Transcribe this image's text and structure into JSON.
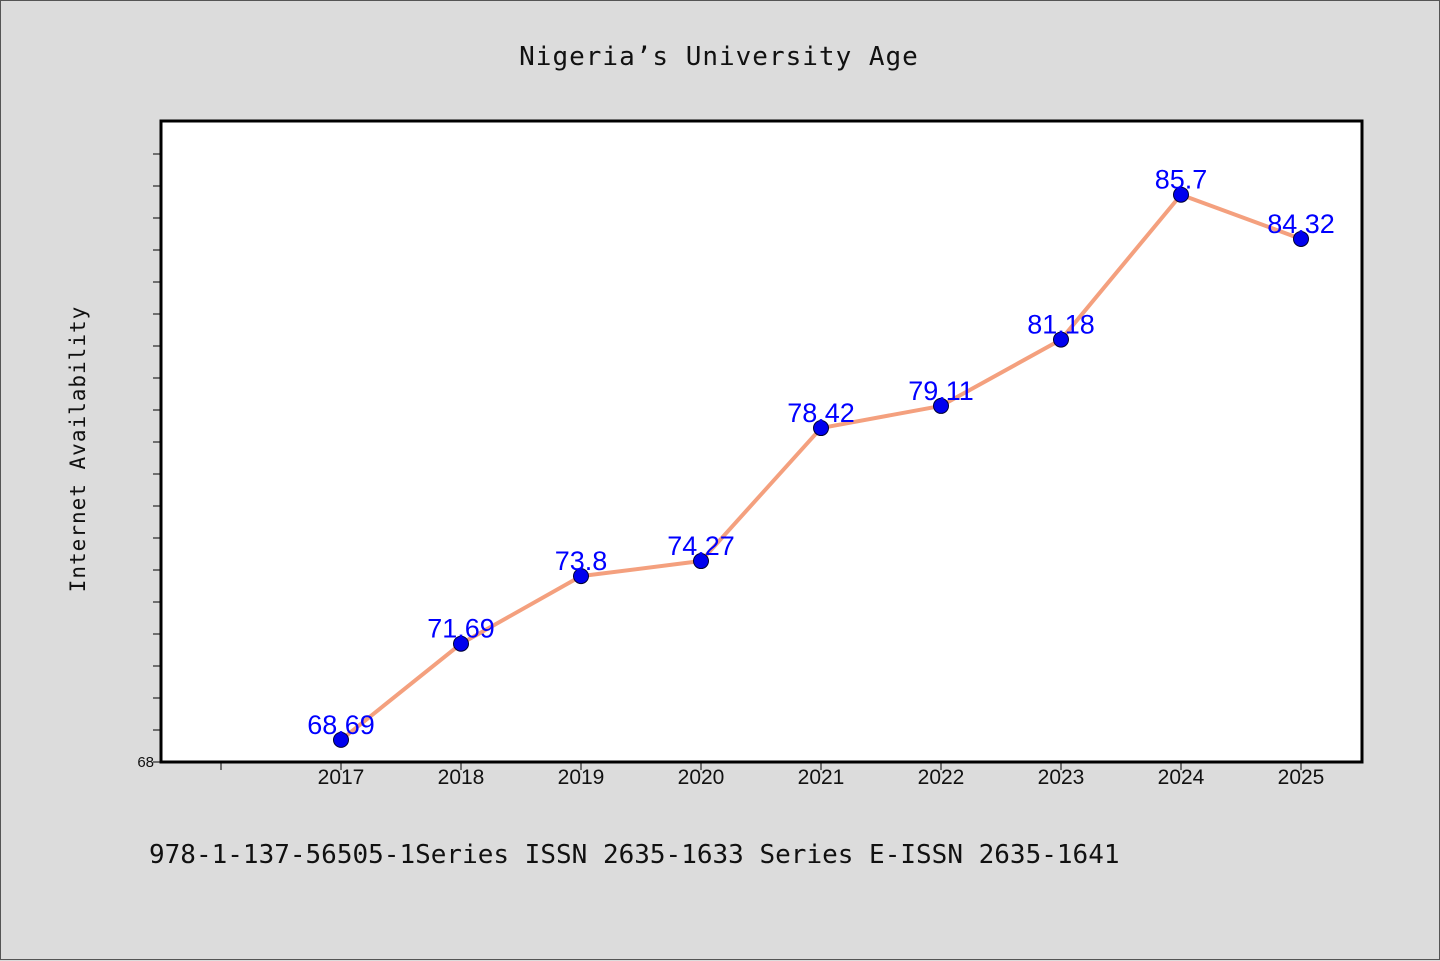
{
  "chart_data": {
    "type": "line",
    "title": "Nigeria’s University Age",
    "ylabel": "Internet Availability",
    "xlabel": "",
    "categories": [
      "2017",
      "2018",
      "2019",
      "2020",
      "2021",
      "2022",
      "2023",
      "2024",
      "2025"
    ],
    "values": [
      68.69,
      71.69,
      73.8,
      74.27,
      78.42,
      79.11,
      81.18,
      85.7,
      84.32
    ],
    "value_labels": [
      "68.69",
      "71.69",
      "73.8",
      "74.27",
      "78.42",
      "79.11",
      "81.18",
      "85.7",
      "84.32"
    ],
    "y_tick_labels": [
      "68"
    ],
    "ylim": [
      68,
      88
    ],
    "grid": false,
    "legend": "none",
    "colors": {
      "line": "#f4a07e",
      "marker": "#0000ee",
      "label": "#0000ff",
      "plot_background": "#ffffff",
      "page_background": "#dcdcdc"
    }
  },
  "footer": {
    "text": "978-1-137-56505-1Series ISSN 2635-1633 Series E-ISSN 2635-1641"
  }
}
